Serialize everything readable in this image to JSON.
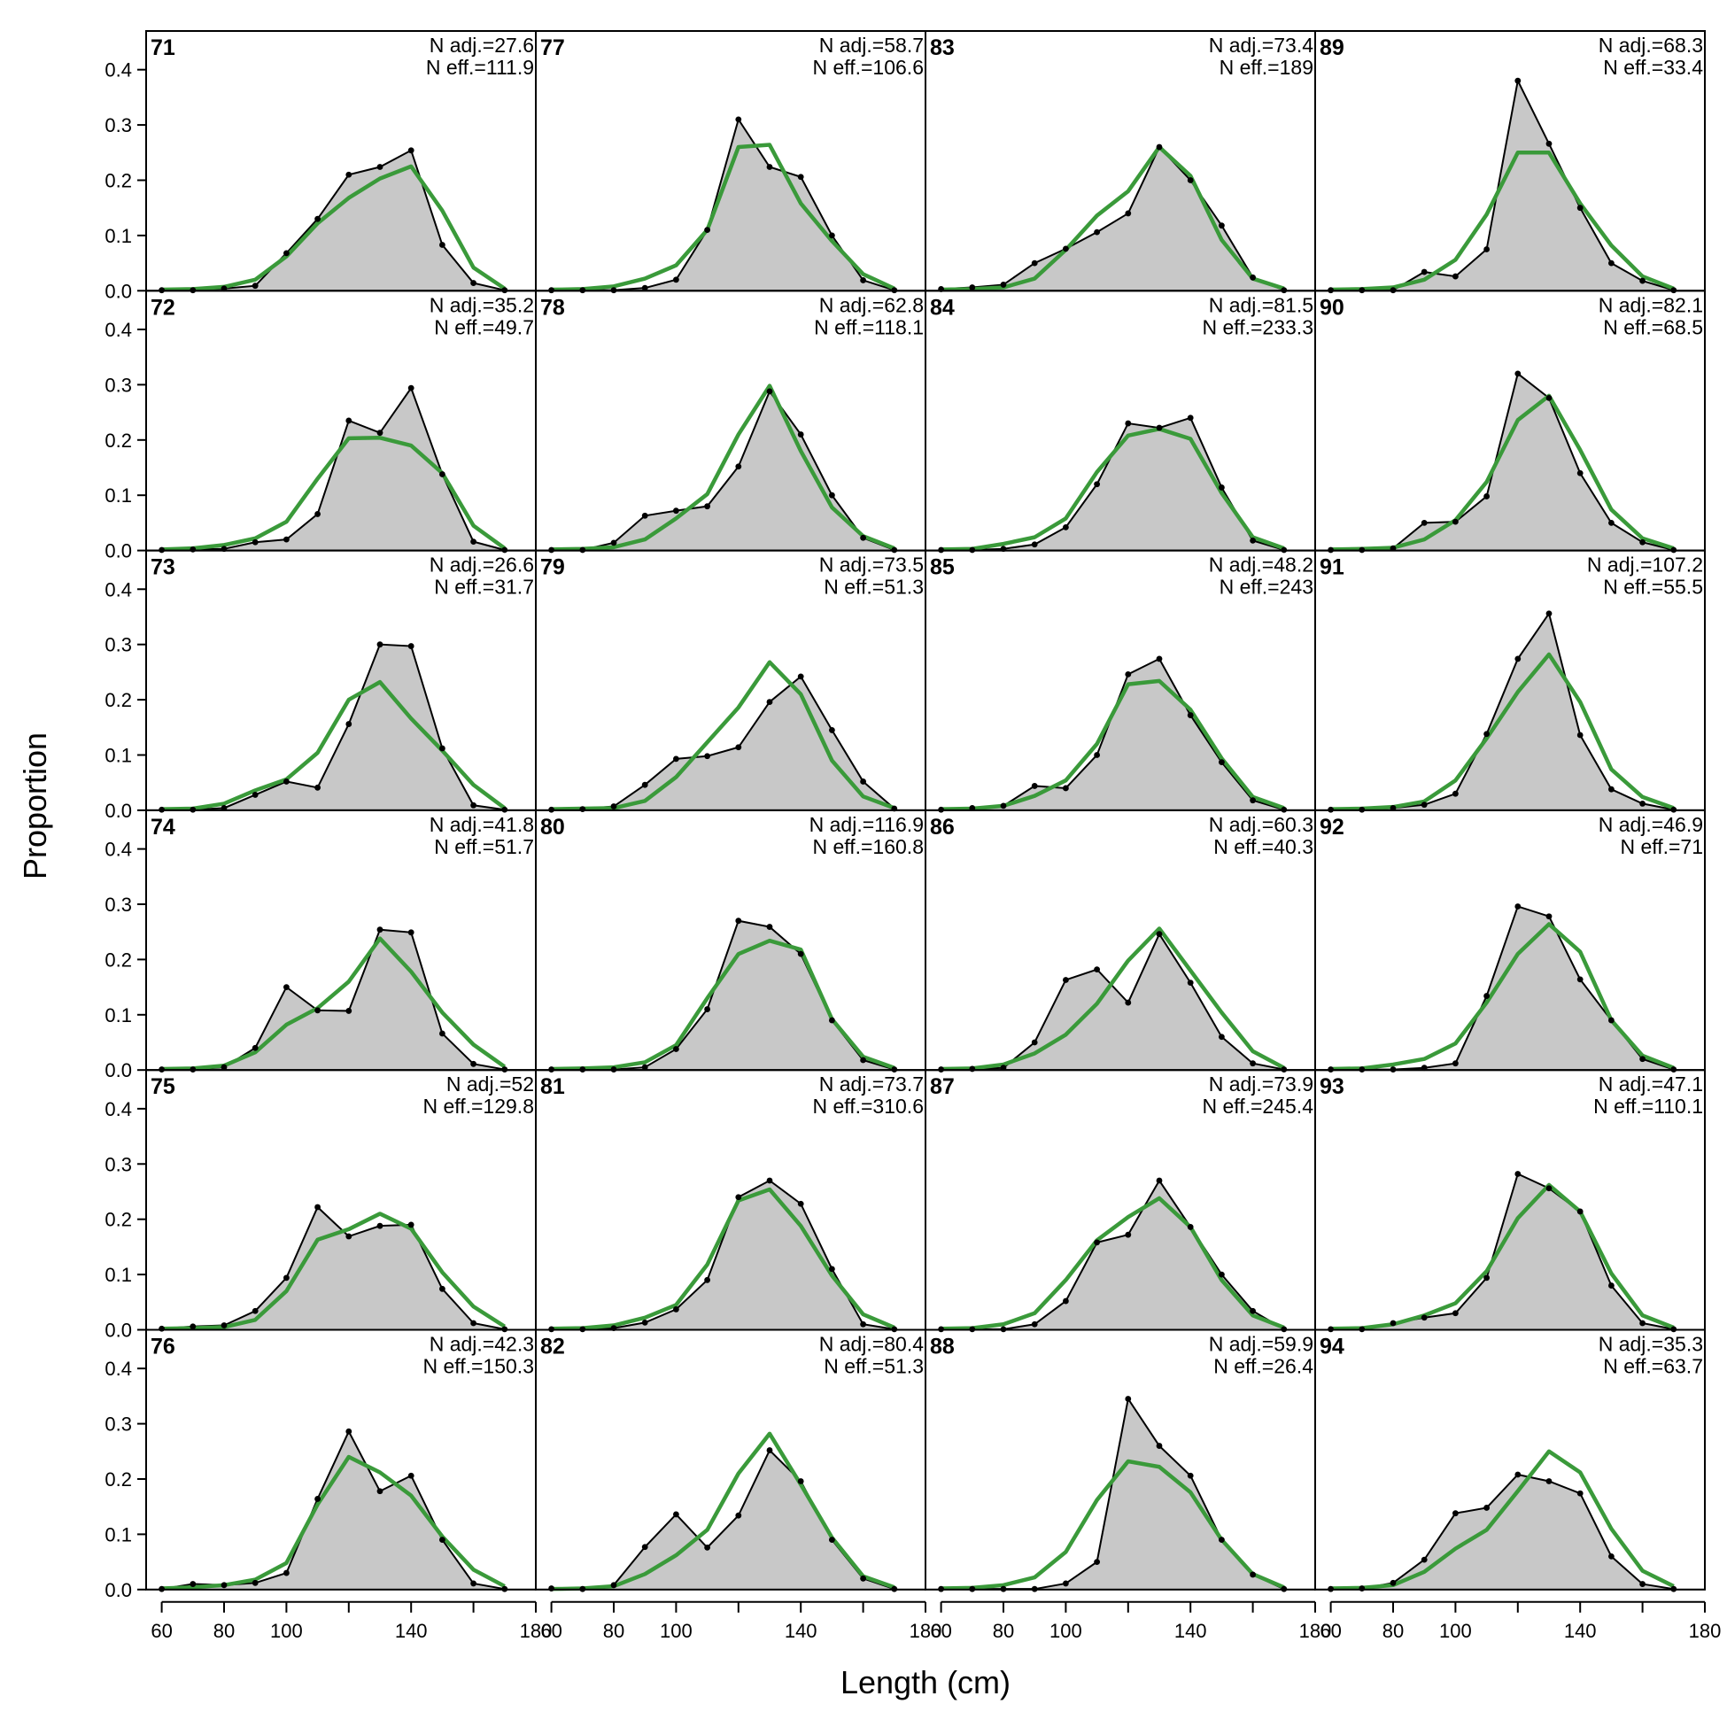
{
  "chart_data": {
    "type": "area",
    "xlabel": "Length (cm)",
    "ylabel": "Proportion",
    "xlim": [
      55,
      180
    ],
    "ylim": [
      0,
      0.47
    ],
    "x_ticks": [
      "60",
      "80",
      "100",
      "140",
      "180"
    ],
    "y_ticks": [
      "0.0",
      "0.1",
      "0.2",
      "0.3",
      "0.4"
    ],
    "x": [
      60,
      70,
      80,
      90,
      100,
      110,
      120,
      130,
      140,
      150,
      160,
      170
    ],
    "grid": false,
    "layout": "4 columns x 6 rows, panels ordered top-to-bottom then left-to-right",
    "observed_style": {
      "fill": "#c8c8c8",
      "line": "#000000"
    },
    "expected_style": {
      "line": "#3a9a3a"
    },
    "panels": [
      {
        "id": "71",
        "n_adj": "N adj.=27.6",
        "n_eff": "N eff.=111.9",
        "observed": [
          0.001,
          0.001,
          0.004,
          0.009,
          0.068,
          0.13,
          0.21,
          0.224,
          0.254,
          0.083,
          0.014,
          0.001
        ],
        "expected": [
          0.002,
          0.003,
          0.007,
          0.02,
          0.062,
          0.122,
          0.168,
          0.203,
          0.225,
          0.145,
          0.042,
          0.004
        ]
      },
      {
        "id": "72",
        "n_adj": "N adj.=35.2",
        "n_eff": "N eff.=49.7",
        "observed": [
          0.001,
          0.002,
          0.003,
          0.015,
          0.02,
          0.066,
          0.235,
          0.213,
          0.294,
          0.138,
          0.016,
          0.001
        ],
        "expected": [
          0.002,
          0.004,
          0.01,
          0.022,
          0.052,
          0.13,
          0.203,
          0.204,
          0.19,
          0.14,
          0.045,
          0.004
        ]
      },
      {
        "id": "73",
        "n_adj": "N adj.=26.6",
        "n_eff": "N eff.=31.7",
        "observed": [
          0.001,
          0.001,
          0.004,
          0.028,
          0.052,
          0.041,
          0.156,
          0.3,
          0.297,
          0.112,
          0.009,
          0.001
        ],
        "expected": [
          0.002,
          0.003,
          0.012,
          0.036,
          0.056,
          0.104,
          0.2,
          0.232,
          0.166,
          0.108,
          0.046,
          0.004
        ]
      },
      {
        "id": "74",
        "n_adj": "N adj.=41.8",
        "n_eff": "N eff.=51.7",
        "observed": [
          0.001,
          0.001,
          0.005,
          0.04,
          0.15,
          0.108,
          0.107,
          0.254,
          0.249,
          0.066,
          0.011,
          0.001
        ],
        "expected": [
          0.002,
          0.003,
          0.008,
          0.032,
          0.082,
          0.112,
          0.16,
          0.238,
          0.178,
          0.104,
          0.046,
          0.006
        ]
      },
      {
        "id": "75",
        "n_adj": "N adj.=52",
        "n_eff": "N eff.=129.8",
        "observed": [
          0.002,
          0.006,
          0.008,
          0.034,
          0.094,
          0.222,
          0.169,
          0.188,
          0.19,
          0.074,
          0.012,
          0.001
        ],
        "expected": [
          0.002,
          0.003,
          0.005,
          0.018,
          0.07,
          0.163,
          0.182,
          0.21,
          0.183,
          0.104,
          0.042,
          0.006
        ]
      },
      {
        "id": "76",
        "n_adj": "N adj.=42.3",
        "n_eff": "N eff.=150.3",
        "observed": [
          0.001,
          0.01,
          0.008,
          0.012,
          0.03,
          0.164,
          0.286,
          0.178,
          0.206,
          0.09,
          0.011,
          0.001
        ],
        "expected": [
          0.002,
          0.004,
          0.008,
          0.018,
          0.048,
          0.154,
          0.24,
          0.212,
          0.17,
          0.096,
          0.036,
          0.006
        ]
      },
      {
        "id": "77",
        "n_adj": "N adj.=58.7",
        "n_eff": "N eff.=106.6",
        "observed": [
          0.001,
          0.001,
          0.001,
          0.005,
          0.02,
          0.11,
          0.31,
          0.224,
          0.206,
          0.1,
          0.019,
          0.001
        ],
        "expected": [
          0.002,
          0.003,
          0.008,
          0.022,
          0.046,
          0.11,
          0.26,
          0.264,
          0.158,
          0.09,
          0.03,
          0.004
        ]
      },
      {
        "id": "78",
        "n_adj": "N adj.=62.8",
        "n_eff": "N eff.=118.1",
        "observed": [
          0.001,
          0.001,
          0.014,
          0.063,
          0.072,
          0.08,
          0.152,
          0.288,
          0.21,
          0.1,
          0.023,
          0.001
        ],
        "expected": [
          0.002,
          0.003,
          0.006,
          0.02,
          0.058,
          0.102,
          0.21,
          0.298,
          0.18,
          0.078,
          0.026,
          0.004
        ]
      },
      {
        "id": "79",
        "n_adj": "N adj.=73.5",
        "n_eff": "N eff.=51.3",
        "observed": [
          0.001,
          0.002,
          0.007,
          0.046,
          0.093,
          0.098,
          0.114,
          0.196,
          0.242,
          0.145,
          0.052,
          0.003
        ],
        "expected": [
          0.002,
          0.003,
          0.004,
          0.017,
          0.06,
          0.123,
          0.186,
          0.268,
          0.21,
          0.09,
          0.025,
          0.004
        ]
      },
      {
        "id": "80",
        "n_adj": "N adj.=116.9",
        "n_eff": "N eff.=160.8",
        "observed": [
          0.001,
          0.001,
          0.001,
          0.005,
          0.038,
          0.11,
          0.27,
          0.259,
          0.21,
          0.09,
          0.018,
          0.001
        ],
        "expected": [
          0.002,
          0.003,
          0.005,
          0.014,
          0.045,
          0.13,
          0.21,
          0.234,
          0.218,
          0.092,
          0.024,
          0.004
        ]
      },
      {
        "id": "81",
        "n_adj": "N adj.=73.7",
        "n_eff": "N eff.=310.6",
        "observed": [
          0.001,
          0.001,
          0.003,
          0.013,
          0.037,
          0.09,
          0.24,
          0.27,
          0.228,
          0.11,
          0.01,
          0.001
        ],
        "expected": [
          0.002,
          0.003,
          0.008,
          0.022,
          0.045,
          0.118,
          0.234,
          0.254,
          0.188,
          0.098,
          0.028,
          0.004
        ]
      },
      {
        "id": "82",
        "n_adj": "N adj.=80.4",
        "n_eff": "N eff.=51.3",
        "observed": [
          0.002,
          0.001,
          0.008,
          0.077,
          0.136,
          0.076,
          0.134,
          0.252,
          0.196,
          0.09,
          0.02,
          0.001
        ],
        "expected": [
          0.001,
          0.002,
          0.006,
          0.028,
          0.062,
          0.108,
          0.21,
          0.282,
          0.19,
          0.094,
          0.024,
          0.004
        ]
      },
      {
        "id": "83",
        "n_adj": "N adj.=73.4",
        "n_eff": "N eff.=189",
        "observed": [
          0.003,
          0.006,
          0.011,
          0.05,
          0.076,
          0.106,
          0.14,
          0.26,
          0.2,
          0.118,
          0.024,
          0.001
        ],
        "expected": [
          0.002,
          0.003,
          0.006,
          0.022,
          0.074,
          0.136,
          0.18,
          0.26,
          0.208,
          0.092,
          0.022,
          0.004
        ]
      },
      {
        "id": "84",
        "n_adj": "N adj.=81.5",
        "n_eff": "N eff.=233.3",
        "observed": [
          0.001,
          0.001,
          0.003,
          0.011,
          0.042,
          0.12,
          0.23,
          0.222,
          0.24,
          0.114,
          0.018,
          0.001
        ],
        "expected": [
          0.002,
          0.003,
          0.012,
          0.024,
          0.058,
          0.142,
          0.208,
          0.22,
          0.202,
          0.104,
          0.024,
          0.004
        ]
      },
      {
        "id": "85",
        "n_adj": "N adj.=48.2",
        "n_eff": "N eff.=243",
        "observed": [
          0.001,
          0.004,
          0.008,
          0.044,
          0.04,
          0.1,
          0.246,
          0.274,
          0.172,
          0.087,
          0.018,
          0.001
        ],
        "expected": [
          0.002,
          0.003,
          0.008,
          0.026,
          0.054,
          0.12,
          0.228,
          0.234,
          0.182,
          0.094,
          0.024,
          0.004
        ]
      },
      {
        "id": "86",
        "n_adj": "N adj.=60.3",
        "n_eff": "N eff.=40.3",
        "observed": [
          0.001,
          0.002,
          0.004,
          0.05,
          0.163,
          0.182,
          0.122,
          0.246,
          0.158,
          0.06,
          0.012,
          0.001
        ],
        "expected": [
          0.002,
          0.003,
          0.01,
          0.03,
          0.064,
          0.12,
          0.198,
          0.256,
          0.18,
          0.104,
          0.034,
          0.004
        ]
      },
      {
        "id": "87",
        "n_adj": "N adj.=73.9",
        "n_eff": "N eff.=245.4",
        "observed": [
          0.001,
          0.001,
          0.001,
          0.01,
          0.052,
          0.158,
          0.172,
          0.27,
          0.186,
          0.1,
          0.034,
          0.001
        ],
        "expected": [
          0.002,
          0.003,
          0.01,
          0.03,
          0.09,
          0.162,
          0.204,
          0.238,
          0.186,
          0.09,
          0.026,
          0.004
        ]
      },
      {
        "id": "88",
        "n_adj": "N adj.=59.9",
        "n_eff": "N eff.=26.4",
        "observed": [
          0.001,
          0.001,
          0.001,
          0.001,
          0.011,
          0.05,
          0.345,
          0.26,
          0.206,
          0.09,
          0.027,
          0.001
        ],
        "expected": [
          0.002,
          0.003,
          0.008,
          0.022,
          0.068,
          0.162,
          0.232,
          0.222,
          0.176,
          0.09,
          0.028,
          0.004
        ]
      },
      {
        "id": "89",
        "n_adj": "N adj.=68.3",
        "n_eff": "N eff.=33.4",
        "observed": [
          0.001,
          0.001,
          0.001,
          0.034,
          0.026,
          0.075,
          0.38,
          0.266,
          0.15,
          0.05,
          0.018,
          0.001
        ],
        "expected": [
          0.002,
          0.003,
          0.006,
          0.02,
          0.056,
          0.138,
          0.25,
          0.25,
          0.158,
          0.082,
          0.026,
          0.004
        ]
      },
      {
        "id": "90",
        "n_adj": "N adj.=82.1",
        "n_eff": "N eff.=68.5",
        "observed": [
          0.001,
          0.001,
          0.004,
          0.05,
          0.052,
          0.098,
          0.32,
          0.276,
          0.14,
          0.05,
          0.015,
          0.001
        ],
        "expected": [
          0.002,
          0.003,
          0.005,
          0.02,
          0.055,
          0.124,
          0.236,
          0.28,
          0.182,
          0.074,
          0.022,
          0.004
        ]
      },
      {
        "id": "91",
        "n_adj": "N adj.=107.2",
        "n_eff": "N eff.=55.5",
        "observed": [
          0.001,
          0.001,
          0.004,
          0.01,
          0.03,
          0.138,
          0.274,
          0.356,
          0.136,
          0.038,
          0.012,
          0.001
        ],
        "expected": [
          0.002,
          0.003,
          0.006,
          0.016,
          0.054,
          0.13,
          0.214,
          0.282,
          0.196,
          0.074,
          0.024,
          0.004
        ]
      },
      {
        "id": "92",
        "n_adj": "N adj.=46.9",
        "n_eff": "N eff.=71",
        "observed": [
          0.001,
          0.001,
          0.001,
          0.004,
          0.012,
          0.134,
          0.296,
          0.278,
          0.164,
          0.09,
          0.02,
          0.001
        ],
        "expected": [
          0.002,
          0.003,
          0.01,
          0.02,
          0.048,
          0.122,
          0.21,
          0.264,
          0.214,
          0.09,
          0.026,
          0.004
        ]
      },
      {
        "id": "93",
        "n_adj": "N adj.=47.1",
        "n_eff": "N eff.=110.1",
        "observed": [
          0.001,
          0.001,
          0.012,
          0.022,
          0.03,
          0.094,
          0.282,
          0.256,
          0.214,
          0.08,
          0.012,
          0.001
        ],
        "expected": [
          0.002,
          0.003,
          0.01,
          0.026,
          0.048,
          0.106,
          0.202,
          0.262,
          0.214,
          0.102,
          0.026,
          0.004
        ]
      },
      {
        "id": "94",
        "n_adj": "N adj.=35.3",
        "n_eff": "N eff.=63.7",
        "observed": [
          0.001,
          0.002,
          0.012,
          0.054,
          0.138,
          0.148,
          0.208,
          0.196,
          0.174,
          0.06,
          0.01,
          0.001
        ],
        "expected": [
          0.002,
          0.003,
          0.008,
          0.032,
          0.074,
          0.108,
          0.178,
          0.25,
          0.212,
          0.11,
          0.034,
          0.006
        ]
      }
    ]
  }
}
